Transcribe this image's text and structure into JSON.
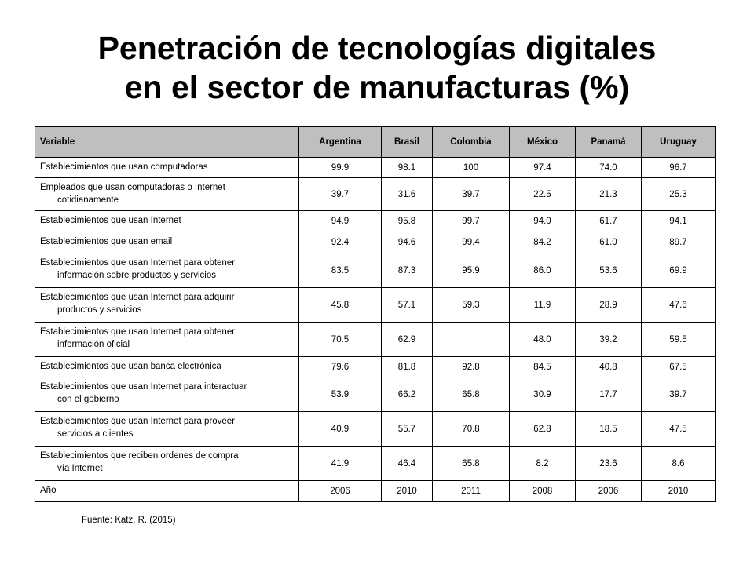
{
  "title": {
    "line1": "Penetración de tecnologías digitales",
    "line2": "en el sector de manufacturas (%)"
  },
  "table": {
    "headers": [
      "Variable",
      "Argentina",
      "Brasil",
      "Colombia",
      "México",
      "Panamá",
      "Uruguay"
    ],
    "rows": [
      {
        "label1": "Establecimientos que usan computadoras",
        "label2": "",
        "values": [
          "99.9",
          "98.1",
          "100",
          "97.4",
          "74.0",
          "96.7"
        ]
      },
      {
        "label1": "Empleados que usan computadoras o Internet",
        "label2": "cotidianamente",
        "values": [
          "39.7",
          "31.6",
          "39.7",
          "22.5",
          "21.3",
          "25.3"
        ]
      },
      {
        "label1": "Establecimientos que usan Internet",
        "label2": "",
        "values": [
          "94.9",
          "95.8",
          "99.7",
          "94.0",
          "61.7",
          "94.1"
        ]
      },
      {
        "label1": "Establecimientos que usan email",
        "label2": "",
        "values": [
          "92.4",
          "94.6",
          "99.4",
          "84.2",
          "61.0",
          "89.7"
        ]
      },
      {
        "label1": "Establecimientos que usan Internet para obtener",
        "label2": "información sobre productos y servicios",
        "values": [
          "83.5",
          "87.3",
          "95.9",
          "86.0",
          "53.6",
          "69.9"
        ]
      },
      {
        "label1": "Establecimientos que usan Internet para adquirir",
        "label2": "productos y servicios",
        "values": [
          "45.8",
          "57.1",
          "59.3",
          "11.9",
          "28.9",
          "47.6"
        ]
      },
      {
        "label1": "Establecimientos que usan Internet para obtener",
        "label2": "información oficial",
        "values": [
          "70.5",
          "62.9",
          "",
          "48.0",
          "39.2",
          "59.5"
        ]
      },
      {
        "label1": "Establecimientos que usan banca electrónica",
        "label2": "",
        "values": [
          "79.6",
          "81.8",
          "92.8",
          "84.5",
          "40.8",
          "67.5"
        ]
      },
      {
        "label1": "Establecimientos que usan Internet para interactuar",
        "label2": "con el gobierno",
        "values": [
          "53.9",
          "66.2",
          "65.8",
          "30.9",
          "17.7",
          "39.7"
        ]
      },
      {
        "label1": "Establecimientos que usan Internet para proveer",
        "label2": "servicios a clientes",
        "values": [
          "40.9",
          "55.7",
          "70.8",
          "62.8",
          "18.5",
          "47.5"
        ]
      },
      {
        "label1": "Establecimientos que reciben ordenes de compra",
        "label2": "vía Internet",
        "values": [
          "41.9",
          "46.4",
          "65.8",
          "8.2",
          "23.6",
          "8.6"
        ]
      },
      {
        "label1": "Año",
        "label2": "",
        "values": [
          "2006",
          "2010",
          "2011",
          "2008",
          "2006",
          "2010"
        ]
      }
    ]
  },
  "footer": "Fuente: Katz, R. (2015)"
}
